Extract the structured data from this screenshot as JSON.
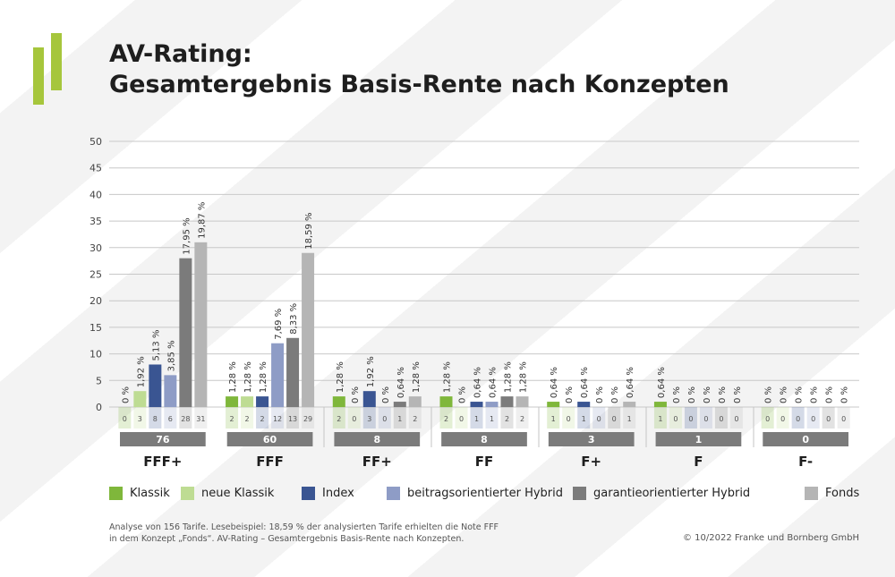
{
  "title": {
    "line1": "AV-Rating:",
    "line2": "Gesamtergebnis Basis-Rente nach Konzepten"
  },
  "chart_data": {
    "type": "bar",
    "title": "AV-Rating: Gesamtergebnis Basis-Rente nach Konzepten",
    "xlabel": "",
    "ylabel": "",
    "ylim": [
      0,
      50
    ],
    "yticks": [
      0,
      5,
      10,
      15,
      20,
      25,
      30,
      35,
      40,
      45,
      50
    ],
    "grid": true,
    "legend_position": "bottom",
    "categories": [
      "FFF+",
      "FFF",
      "FF+",
      "FF",
      "F+",
      "F",
      "F-"
    ],
    "category_totals": [
      "76",
      "60",
      "8",
      "8",
      "3",
      "1",
      "0"
    ],
    "series": [
      {
        "name": "Klassik",
        "color": "#7fb73b",
        "values": [
          0,
          2,
          2,
          2,
          1,
          1,
          0
        ],
        "percent_labels": [
          "0 %",
          "1,28 %",
          "1,28 %",
          "1,28 %",
          "0,64 %",
          "0,64 %",
          "0 %"
        ]
      },
      {
        "name": "neue Klassik",
        "color": "#bedc93",
        "values": [
          3,
          2,
          0,
          0,
          0,
          0,
          0
        ],
        "percent_labels": [
          "1,92 %",
          "1,28 %",
          "0 %",
          "0 %",
          "0 %",
          "0 %",
          "0 %"
        ]
      },
      {
        "name": "Index",
        "color": "#3a5592",
        "values": [
          8,
          2,
          3,
          1,
          1,
          0,
          0
        ],
        "percent_labels": [
          "5,13 %",
          "1,28 %",
          "1,92 %",
          "0,64 %",
          "0,64 %",
          "0 %",
          "0 %"
        ]
      },
      {
        "name": "beitragsorientierter Hybrid",
        "color": "#8e9cc6",
        "values": [
          6,
          12,
          0,
          1,
          0,
          0,
          0
        ],
        "percent_labels": [
          "3,85 %",
          "7,69 %",
          "0 %",
          "0,64 %",
          "0 %",
          "0 %",
          "0 %"
        ]
      },
      {
        "name": "garantieorientierter Hybrid",
        "color": "#7b7b7b",
        "values": [
          28,
          13,
          1,
          2,
          0,
          0,
          0
        ],
        "percent_labels": [
          "17,95 %",
          "8,33 %",
          "0,64 %",
          "1,28 %",
          "0 %",
          "0 %",
          "0 %"
        ]
      },
      {
        "name": "Fonds",
        "color": "#b5b5b5",
        "values": [
          31,
          29,
          2,
          2,
          1,
          0,
          0
        ],
        "percent_labels": [
          "19,87 %",
          "18,59 %",
          "1,28 %",
          "1,28 %",
          "0,64 %",
          "0 %",
          "0 %"
        ]
      }
    ]
  },
  "footnote": {
    "line1": "Analyse von 156 Tarife. Lesebeispiel: 18,59 % der analysierten Tarife erhielten die Note FFF",
    "line2": "in dem Konzept „Fonds“. AV-Rating – Gesamtergebnis Basis-Rente nach Konzepten."
  },
  "copyright": "© 10/2022 Franke und Bornberg GmbH",
  "colors": {
    "brand_green": "#a6c63c",
    "total_box": "#7b7b7b",
    "gridline": "#c8c8c8"
  }
}
